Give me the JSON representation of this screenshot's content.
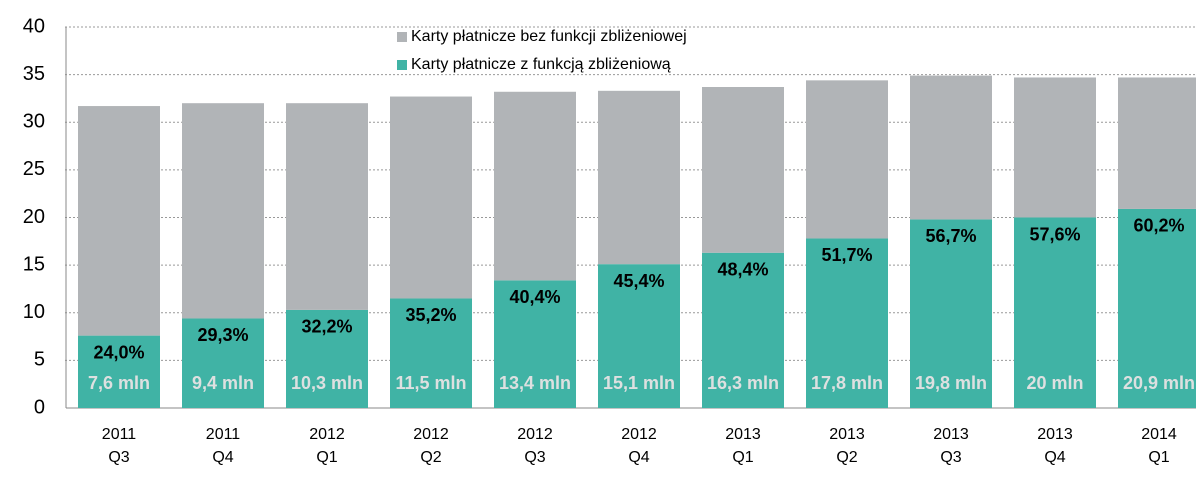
{
  "chart_data": {
    "type": "bar",
    "stacked": true,
    "categories": [
      [
        "2011",
        "Q3"
      ],
      [
        "2011",
        "Q4"
      ],
      [
        "2012",
        "Q1"
      ],
      [
        "2012",
        "Q2"
      ],
      [
        "2012",
        "Q3"
      ],
      [
        "2012",
        "Q4"
      ],
      [
        "2013",
        "Q1"
      ],
      [
        "2013",
        "Q2"
      ],
      [
        "2013",
        "Q3"
      ],
      [
        "2013",
        "Q4"
      ],
      [
        "2014",
        "Q1"
      ]
    ],
    "series": [
      {
        "name": "Karty płatnicze z funkcją zbliżeniową",
        "color": "#40b3a5",
        "values": [
          7.6,
          9.4,
          10.3,
          11.5,
          13.4,
          15.1,
          16.3,
          17.8,
          19.8,
          20,
          20.9
        ],
        "value_labels": [
          "7,6 mln",
          "9,4 mln",
          "10,3 mln",
          "11,5 mln",
          "13,4 mln",
          "15,1 mln",
          "16,3 mln",
          "17,8 mln",
          "19,8 mln",
          "20 mln",
          "20,9 mln"
        ]
      },
      {
        "name": "Karty płatnicze bez funkcji zbliżeniowej",
        "color": "#b1b4b7",
        "values": [
          24.1,
          22.6,
          21.7,
          21.2,
          19.8,
          18.2,
          17.4,
          16.6,
          15.1,
          14.7,
          13.8
        ]
      }
    ],
    "share_labels": [
      "24,0%",
      "29,3%",
      "32,2%",
      "35,2%",
      "40,4%",
      "45,4%",
      "48,4%",
      "51,7%",
      "56,7%",
      "57,6%",
      "60,2%"
    ],
    "ylim": [
      0,
      40
    ],
    "yticks": [
      0,
      5,
      10,
      15,
      20,
      25,
      30,
      35,
      40
    ],
    "grid": true,
    "legend": "top"
  }
}
